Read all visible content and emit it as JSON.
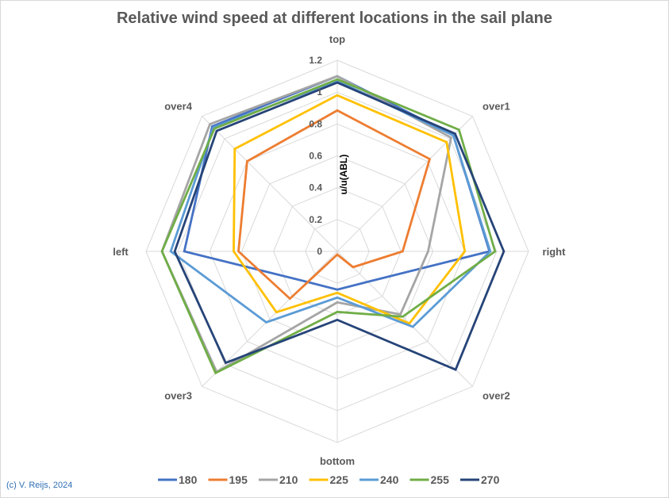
{
  "chart_data": {
    "type": "radar",
    "title": "Relative wind speed at different locations in the sail plane",
    "radial_axis_label": "u/u(ABL)",
    "categories": [
      "top",
      "over1",
      "right",
      "over2",
      "bottom",
      "over3",
      "left",
      "over4"
    ],
    "rlim": [
      0,
      1.2
    ],
    "ticks": [
      "0",
      "0.2",
      "0.4",
      "0.6",
      "0.8",
      "1",
      "1.2"
    ],
    "tick_values": [
      0,
      0.2,
      0.4,
      0.6,
      0.8,
      1,
      1.2
    ],
    "grid": true,
    "legend_position": "bottom",
    "series": [
      {
        "name": "180",
        "color": "#4472C4",
        "values": [
          1.1,
          1.03,
          0.955,
          0.27,
          0.24,
          0.27,
          0.96,
          1.11
        ]
      },
      {
        "name": "195",
        "color": "#ED7D31",
        "values": [
          0.885,
          0.82,
          0.41,
          0.14,
          0.02,
          0.42,
          0.62,
          0.8
        ]
      },
      {
        "name": "210",
        "color": "#A5A5A5",
        "values": [
          1.1,
          1.01,
          0.57,
          0.56,
          0.32,
          1.07,
          1.1,
          1.13
        ]
      },
      {
        "name": "225",
        "color": "#FFC000",
        "values": [
          0.98,
          0.97,
          0.8,
          0.64,
          0.26,
          0.54,
          0.65,
          0.91
        ]
      },
      {
        "name": "240",
        "color": "#5B9BD5",
        "values": [
          1.07,
          1.03,
          0.96,
          0.67,
          0.29,
          0.63,
          1.045,
          1.1
        ]
      },
      {
        "name": "255",
        "color": "#70AD47",
        "values": [
          1.08,
          1.08,
          0.99,
          0.58,
          0.38,
          1.08,
          1.1,
          1.09
        ]
      },
      {
        "name": "270",
        "color": "#264478",
        "values": [
          1.06,
          1.045,
          1.045,
          1.05,
          0.43,
          0.99,
          1.02,
          1.07
        ]
      }
    ]
  },
  "copyright": "(c) V. Reijs, 2024"
}
